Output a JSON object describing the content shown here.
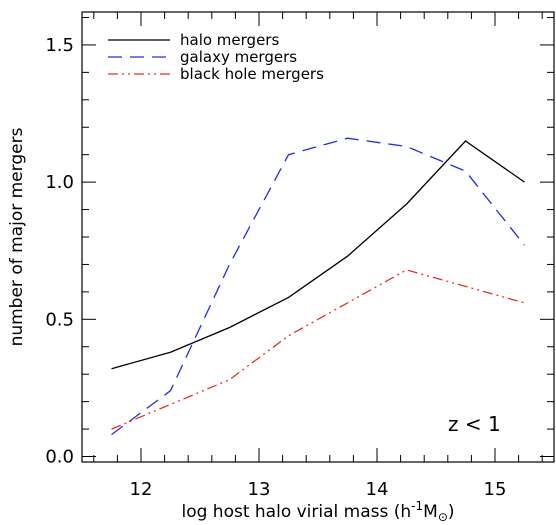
{
  "chart_data": {
    "type": "line",
    "title": "",
    "xlabel": "log host halo virial mass (h",
    "xlabel_exponent": "-1",
    "xlabel_subscript": "M",
    "xlabel_symbol": "⊙",
    "xlabel_close": ")",
    "ylabel": "number of major mergers",
    "xlim": [
      11.5,
      15.5
    ],
    "ylim": [
      -0.02,
      1.62
    ],
    "xticks": [
      12,
      13,
      14,
      15
    ],
    "xtick_labels": [
      "12",
      "13",
      "14",
      "15"
    ],
    "yticks": [
      0.0,
      0.5,
      1.0,
      1.5
    ],
    "ytick_labels": [
      "0.0",
      "0.5",
      "1.0",
      "1.5"
    ],
    "legend_position": "top-left",
    "grid": false,
    "annotation": "z  <  1",
    "series": [
      {
        "name": "halo mergers",
        "color": "#000000",
        "dash": "solid",
        "x": [
          11.75,
          12.25,
          12.75,
          13.25,
          13.75,
          14.25,
          14.75,
          15.25
        ],
        "y": [
          0.32,
          0.38,
          0.47,
          0.58,
          0.73,
          0.92,
          1.15,
          1.0
        ]
      },
      {
        "name": "galaxy mergers",
        "color": "#1f2ee6",
        "dash": "dashed",
        "x": [
          11.75,
          12.25,
          12.75,
          13.25,
          13.75,
          14.25,
          14.75,
          15.25
        ],
        "y": [
          0.08,
          0.24,
          0.7,
          1.1,
          1.16,
          1.13,
          1.04,
          0.77
        ]
      },
      {
        "name": "black hole mergers",
        "color": "#e8321e",
        "dash": "dash-dot-dot",
        "x": [
          11.75,
          12.25,
          12.75,
          13.25,
          13.75,
          14.25,
          14.75,
          15.25
        ],
        "y": [
          0.1,
          0.19,
          0.28,
          0.44,
          0.56,
          0.68,
          0.62,
          0.56
        ]
      }
    ]
  }
}
